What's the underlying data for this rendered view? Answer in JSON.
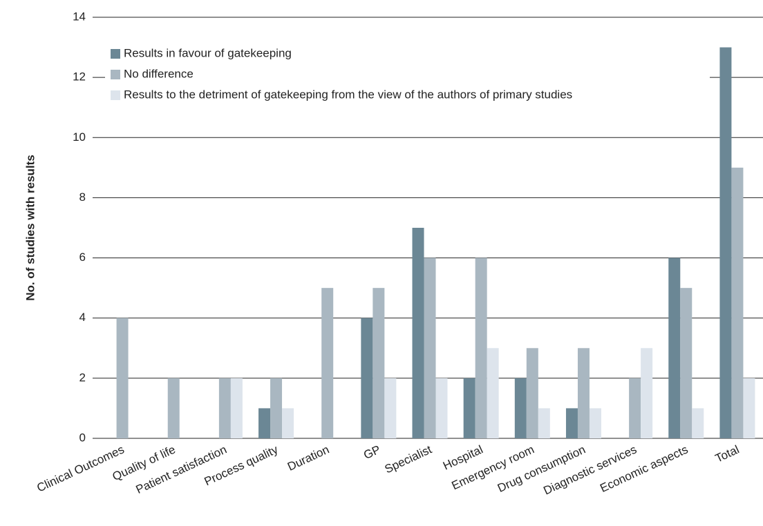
{
  "chart_data": {
    "type": "bar",
    "y_label": "No. of studies with results",
    "categories": [
      "Clinical Outcomes",
      "Quality of life",
      "Patient satisfaction",
      "Process quality",
      "Duration",
      "GP",
      "Specialist",
      "Hospital",
      "Emergency room",
      "Drug consumption",
      "Diagnostic services",
      "Economic aspects",
      "Total"
    ],
    "series": [
      {
        "name": "Results in favour of gatekeeping",
        "color": "#6b8795",
        "values": [
          0,
          0,
          0,
          1,
          0,
          4,
          7,
          2,
          2,
          1,
          0,
          6,
          13
        ]
      },
      {
        "name": "No difference",
        "color": "#a9b7c1",
        "values": [
          4,
          2,
          2,
          2,
          5,
          5,
          6,
          6,
          3,
          3,
          2,
          5,
          9
        ]
      },
      {
        "name": "Results to the detriment of gatekeeping from the view of the authors of primary studies",
        "color": "#dde4ec",
        "values": [
          0,
          0,
          2,
          1,
          0,
          2,
          2,
          3,
          1,
          1,
          3,
          1,
          2
        ]
      }
    ],
    "ylim": [
      0,
      14
    ],
    "yticks": [
      0,
      2,
      4,
      6,
      8,
      10,
      12,
      14
    ],
    "grid": true,
    "legend": "upper left"
  }
}
